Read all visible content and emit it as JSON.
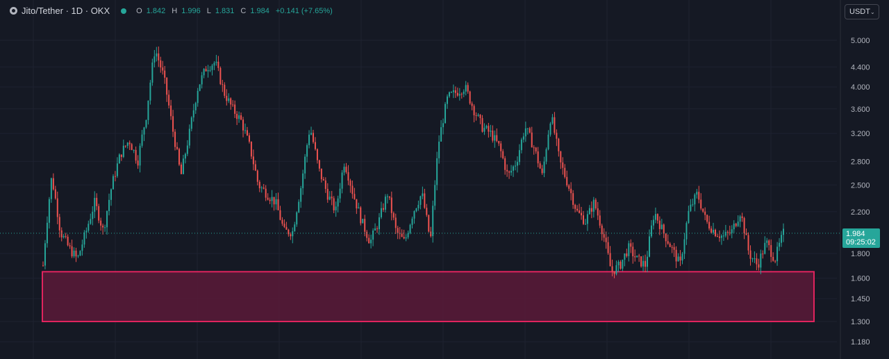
{
  "legend": {
    "symbol": "Jito/Tether · 1D · OKX",
    "open_label": "O",
    "open": "1.842",
    "high_label": "H",
    "high": "1.996",
    "low_label": "L",
    "low": "1.831",
    "close_label": "C",
    "close": "1.984",
    "change": "+0.141 (+7.65%)"
  },
  "currency_selector": {
    "value": "USDT"
  },
  "price_tag": {
    "price": "1.984",
    "countdown": "09:25:02"
  },
  "colors": {
    "background": "#151924",
    "up": "#26a69a",
    "down": "#ef5350",
    "zone_fill": "#5a1a38",
    "zone_border": "#e0245e"
  },
  "chart_data": {
    "type": "candlestick",
    "interval": "1D",
    "y_scale": "log",
    "y_ticks": [
      5.0,
      4.4,
      4.0,
      3.6,
      3.2,
      2.8,
      2.5,
      2.2,
      1.8,
      1.6,
      1.45,
      1.3,
      1.18
    ],
    "y_tick_labels": [
      "5.000",
      "4.400",
      "4.000",
      "3.600",
      "3.200",
      "2.800",
      "2.500",
      "2.200",
      "1.800",
      "1.600",
      "1.450",
      "1.300",
      "1.180"
    ],
    "last_price": 1.984,
    "support_zone": {
      "top": 1.65,
      "bottom": 1.3
    },
    "close_path": [
      1.7,
      2.6,
      2.0,
      1.85,
      1.75,
      2.0,
      2.3,
      2.0,
      2.5,
      2.9,
      3.1,
      2.8,
      3.5,
      4.8,
      4.2,
      3.3,
      2.6,
      3.2,
      4.0,
      4.4,
      4.5,
      3.9,
      3.6,
      3.4,
      3.0,
      2.5,
      2.4,
      2.3,
      2.0,
      2.0,
      2.5,
      3.3,
      2.7,
      2.4,
      2.2,
      2.8,
      2.4,
      2.1,
      1.9,
      2.1,
      2.4,
      2.0,
      1.9,
      2.2,
      2.4,
      1.9,
      3.1,
      3.8,
      3.9,
      4.0,
      3.6,
      3.3,
      3.2,
      3.0,
      2.6,
      2.8,
      3.3,
      3.0,
      2.6,
      3.5,
      2.8,
      2.5,
      2.2,
      2.1,
      2.3,
      2.0,
      1.65,
      1.7,
      1.85,
      1.75,
      1.7,
      2.2,
      2.0,
      1.85,
      1.7,
      2.2,
      2.4,
      2.1,
      2.0,
      1.95,
      2.0,
      2.2,
      1.8,
      1.7,
      1.9,
      1.75,
      1.984
    ]
  }
}
